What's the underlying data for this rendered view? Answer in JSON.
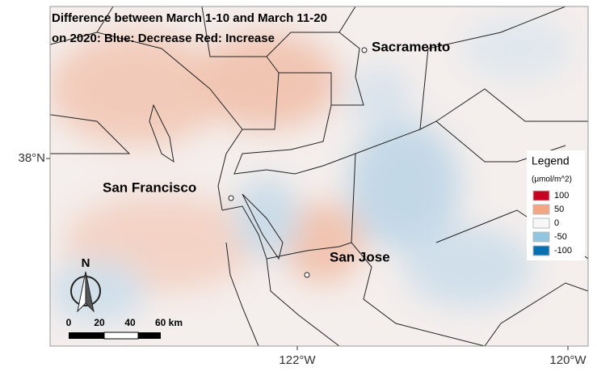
{
  "title": [
    "Difference between March 1-10 and  March 11-20",
    "on 2020: Blue: Decrease Red: Increase"
  ],
  "cities": [
    "Sacramento",
    "San Francisco",
    "San Jose"
  ],
  "axes": {
    "y_labels": [
      "38°N"
    ],
    "x_labels": [
      "122°W",
      "120°W"
    ]
  },
  "legend": {
    "title": "Legend",
    "unit": "(μmol/m^2)",
    "items": [
      {
        "value": 100,
        "color": "#ca0020"
      },
      {
        "value": 50,
        "color": "#f4a582"
      },
      {
        "value": 0,
        "color": "#f7f7f7"
      },
      {
        "value": -50,
        "color": "#92c5de"
      },
      {
        "value": -100,
        "color": "#0571b0"
      }
    ]
  },
  "north": "N",
  "scale": [
    "0",
    "20",
    "40",
    "60 km"
  ]
}
